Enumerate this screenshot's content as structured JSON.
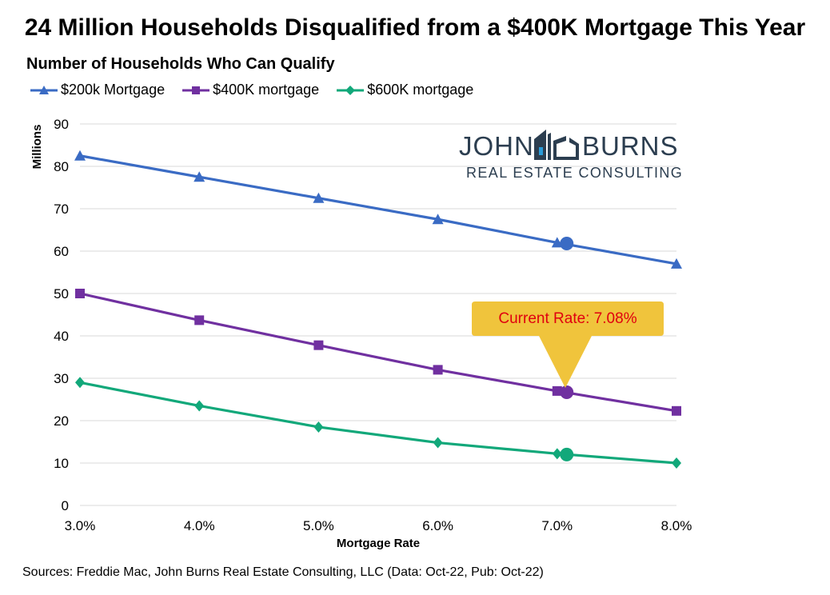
{
  "header": {
    "title": "24 Million Households Disqualified from a $400K Mortgage This Year"
  },
  "footer": {
    "source": "Sources: Freddie Mac, John Burns Real Estate Consulting, LLC (Data: Oct-22, Pub: Oct-22)"
  },
  "logo": {
    "word1": "JOHN",
    "word2": "BURNS",
    "tagline": "REAL ESTATE CONSULTING"
  },
  "callout": {
    "label": "Current Rate: 7.08%",
    "color": "#f0c43c",
    "text_color": "#e0000f"
  },
  "chart_data": {
    "type": "line",
    "title": "Number of Households Who Can Qualify",
    "xlabel": "Mortgage Rate",
    "ylabel": "Millions",
    "x": [
      3.0,
      4.0,
      5.0,
      6.0,
      7.0,
      8.0
    ],
    "x_tick_labels": [
      "3.0%",
      "4.0%",
      "5.0%",
      "6.0%",
      "7.0%",
      "8.0%"
    ],
    "xlim": [
      3.0,
      8.0
    ],
    "ylim": [
      0,
      90
    ],
    "y_ticks": [
      0,
      10,
      20,
      30,
      40,
      50,
      60,
      70,
      80,
      90
    ],
    "grid": "horizontal",
    "legend_position": "top-left",
    "highlight_x": 7.08,
    "series": [
      {
        "name": "$200k Mortgage",
        "marker": "triangle",
        "color": "#3a6bc4",
        "values": [
          82.5,
          77.5,
          72.5,
          67.5,
          62.0,
          57.0
        ],
        "highlight_value": 61.8
      },
      {
        "name": "$400K mortgage",
        "marker": "square",
        "color": "#7030a0",
        "values": [
          50.0,
          43.7,
          37.8,
          32.0,
          27.0,
          22.3
        ],
        "highlight_value": 26.7
      },
      {
        "name": "$600K mortgage",
        "marker": "diamond",
        "color": "#12a87a",
        "values": [
          29.0,
          23.5,
          18.5,
          14.8,
          12.2,
          10.0
        ],
        "highlight_value": 12.0
      }
    ]
  }
}
